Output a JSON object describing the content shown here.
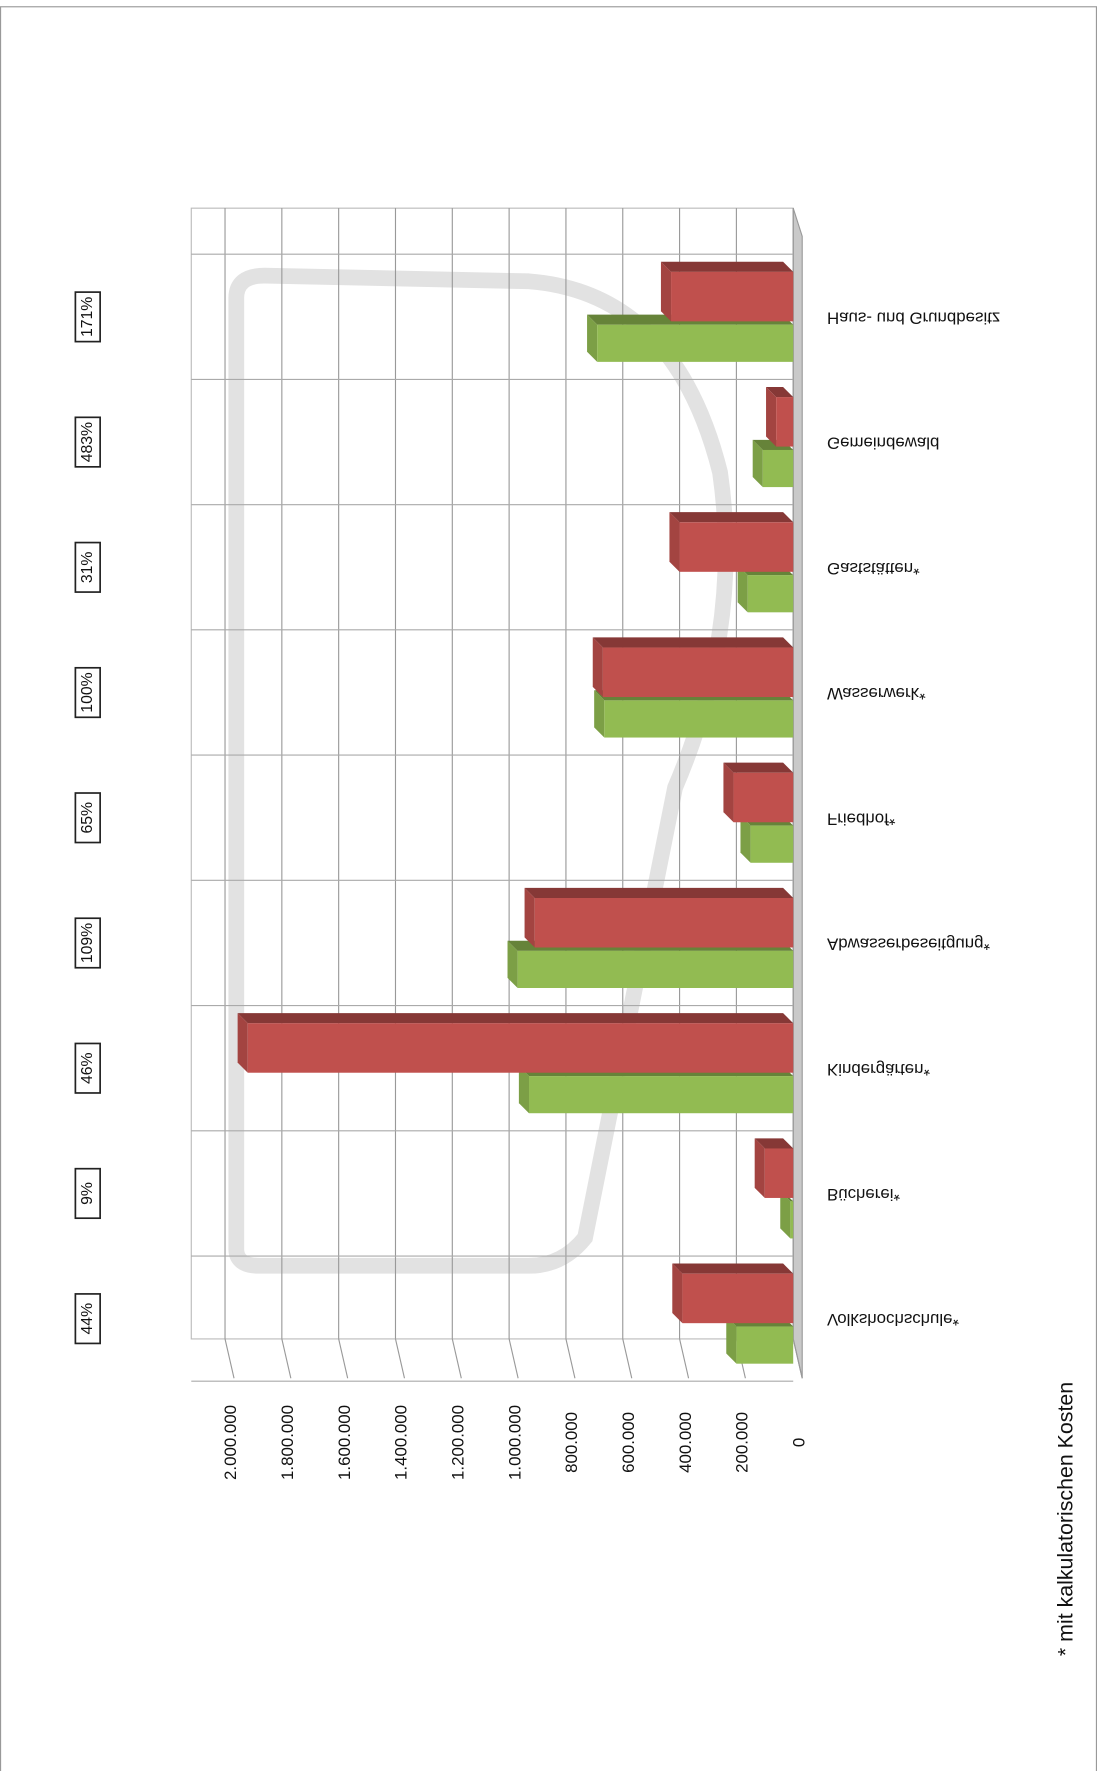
{
  "chart_data": {
    "type": "bar",
    "categories": [
      "Volkshochschule*",
      "Bücherei*",
      "Kindergärten*",
      "Abwasserbeseitgung*",
      "Friedhof*",
      "Wasserwerk*",
      "Gaststätten*",
      "Gemeindewald",
      "Haus- und Grundbesitz"
    ],
    "series": [
      {
        "color": "#92bb52",
        "values": [
          200000,
          10000,
          930000,
          970000,
          150000,
          665000,
          160000,
          107000,
          690000
        ]
      },
      {
        "color": "#c0504d",
        "values": [
          390000,
          100000,
          1920000,
          910000,
          210000,
          670000,
          400000,
          60000,
          430000
        ]
      }
    ],
    "ylim": [
      0,
      2000000
    ],
    "yticks": [
      0,
      {
        "value": 200000,
        "label": "200.000"
      },
      {
        "value": 400000,
        "label": "400.000"
      },
      {
        "value": 600000,
        "label": "600.000"
      },
      {
        "value": 800000,
        "label": "800.000"
      },
      {
        "value": 1000000,
        "label": "1.000.000"
      },
      {
        "value": 1200000,
        "label": "1.200.000"
      },
      {
        "value": 1400000,
        "label": "1.400.000"
      },
      {
        "value": 1600000,
        "label": "1.600.000"
      },
      {
        "value": 1800000,
        "label": "1.800.000"
      },
      {
        "value": 2000000,
        "label": "2.000.000"
      }
    ],
    "grid": true,
    "coverage": [
      44,
      9,
      46,
      109,
      65,
      100,
      31,
      483,
      171
    ],
    "coverage_labels": [
      "44%",
      "9%",
      "46%",
      "109%",
      "65%",
      "100%",
      "31%",
      "483%",
      "171%"
    ],
    "footnote": "* mit kalkulatorischen Kosten"
  }
}
